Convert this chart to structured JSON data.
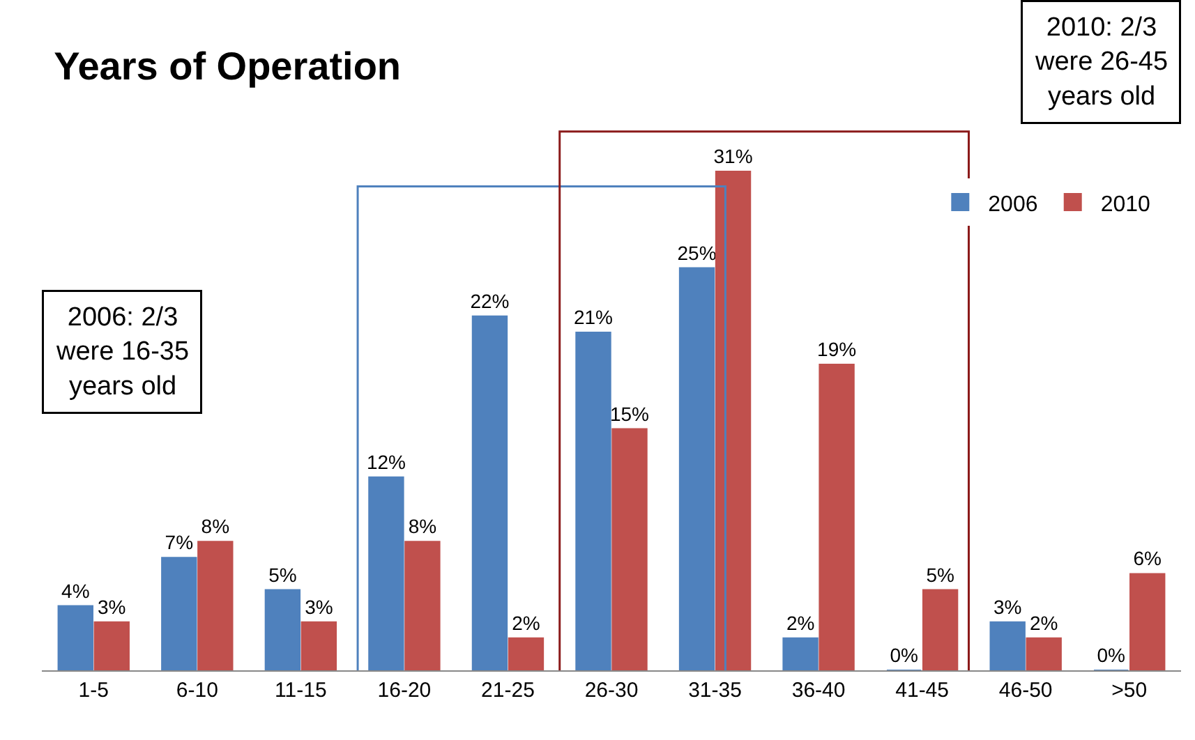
{
  "chart_data": {
    "type": "bar",
    "title": "Years of Operation",
    "categories": [
      "1-5",
      "6-10",
      "11-15",
      "16-20",
      "21-25",
      "26-30",
      "31-35",
      "36-40",
      "41-45",
      "46-50",
      ">50"
    ],
    "series": [
      {
        "name": "2006",
        "color": "#4f81bd",
        "values": [
          4,
          7,
          5,
          12,
          22,
          21,
          25,
          2,
          0,
          3,
          0
        ],
        "value_labels": [
          "4%",
          "7%",
          "5%",
          "12%",
          "22%",
          "21%",
          "25%",
          "2%",
          "0%",
          "3%",
          "0%"
        ]
      },
      {
        "name": "2010",
        "color": "#c0504d",
        "values": [
          3,
          8,
          3,
          8,
          2,
          15,
          31,
          19,
          5,
          2,
          6
        ],
        "value_labels": [
          "3%",
          "8%",
          "3%",
          "8%",
          "2%",
          "15%",
          "31%",
          "19%",
          "5%",
          "2%",
          "6%"
        ]
      }
    ],
    "legend": "top right",
    "annotations": [
      "2006: 2/3 were 16-35 years old",
      "2010: 2/3 were 26-45 years old"
    ]
  }
}
